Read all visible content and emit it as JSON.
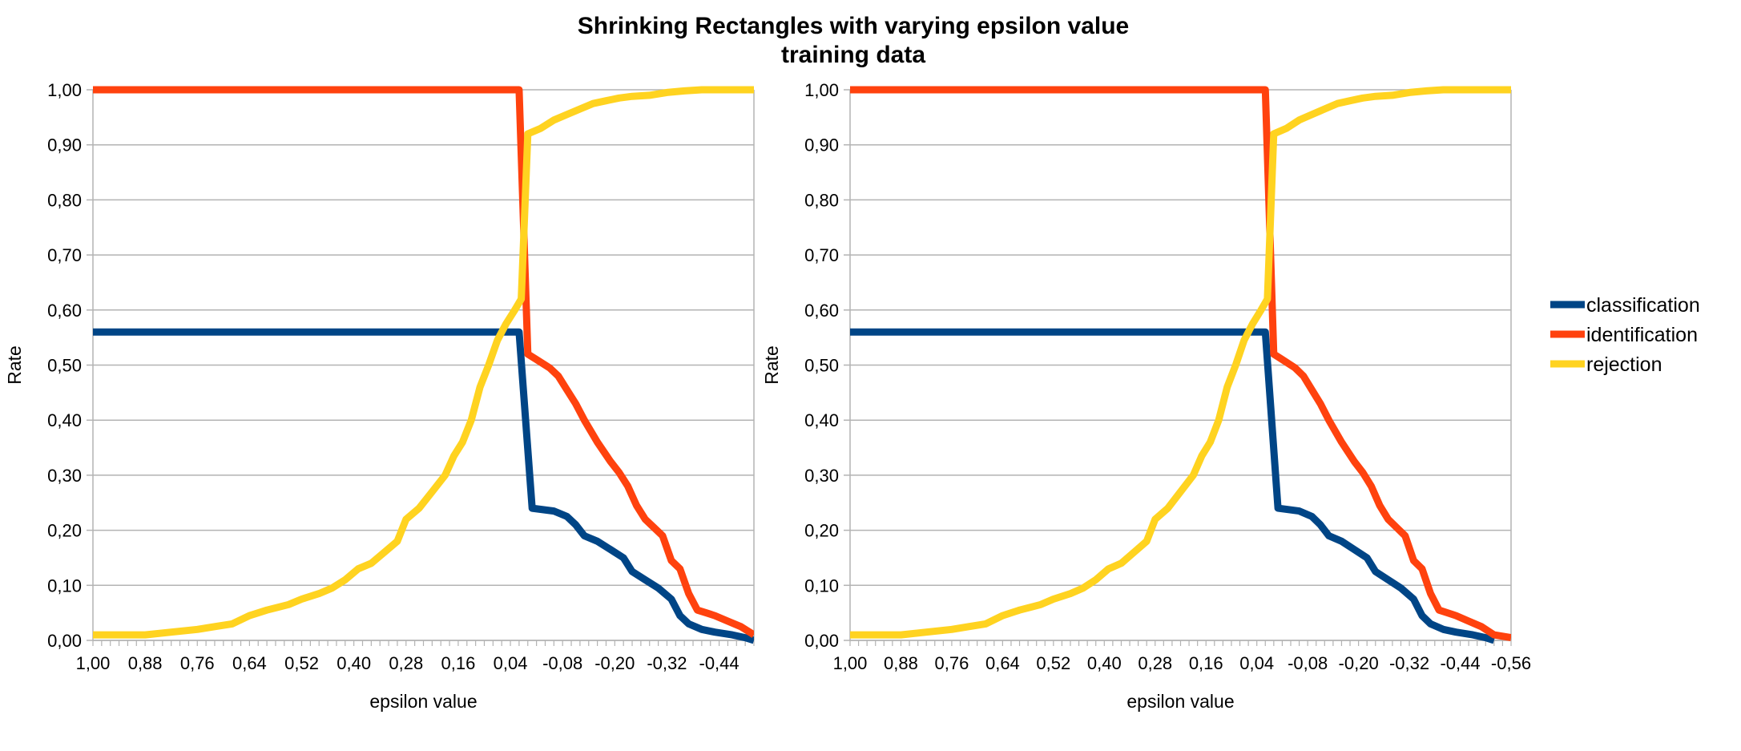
{
  "figure": {
    "title_line1": "Shrinking Rectangles with varying epsilon value",
    "title_line2": "training data"
  },
  "legend": {
    "placement": "right",
    "items": [
      {
        "name": "classification",
        "color": "#004586"
      },
      {
        "name": "identification",
        "color": "#ff420e"
      },
      {
        "name": "rejection",
        "color": "#ffd320"
      }
    ]
  },
  "chart_data": [
    {
      "type": "line",
      "xlabel": "epsilon value",
      "ylabel": "Rate",
      "xlim": [
        1.0,
        -0.52
      ],
      "ylim": [
        0,
        1
      ],
      "grid": true,
      "x_tick_labels": [
        "1,00",
        "0,88",
        "0,76",
        "0,64",
        "0,52",
        "0,40",
        "0,28",
        "0,16",
        "0,04",
        "-0,08",
        "-0,20",
        "-0,32",
        "-0,44"
      ],
      "y_tick_labels": [
        "0,00",
        "0,10",
        "0,20",
        "0,30",
        "0,40",
        "0,50",
        "0,60",
        "0,70",
        "0,80",
        "0,90",
        "1,00"
      ],
      "series": [
        {
          "name": "classification",
          "color": "#004586",
          "points": [
            [
              1.0,
              0.56
            ],
            [
              0.02,
              0.56
            ],
            [
              -0.01,
              0.24
            ],
            [
              -0.06,
              0.235
            ],
            [
              -0.09,
              0.225
            ],
            [
              -0.11,
              0.21
            ],
            [
              -0.13,
              0.19
            ],
            [
              -0.16,
              0.18
            ],
            [
              -0.19,
              0.165
            ],
            [
              -0.22,
              0.15
            ],
            [
              -0.24,
              0.125
            ],
            [
              -0.27,
              0.11
            ],
            [
              -0.3,
              0.095
            ],
            [
              -0.33,
              0.075
            ],
            [
              -0.35,
              0.045
            ],
            [
              -0.37,
              0.03
            ],
            [
              -0.4,
              0.02
            ],
            [
              -0.43,
              0.015
            ],
            [
              -0.47,
              0.01
            ],
            [
              -0.5,
              0.005
            ],
            [
              -0.52,
              0.0
            ]
          ]
        },
        {
          "name": "identification",
          "color": "#ff420e",
          "points": [
            [
              1.0,
              1.0
            ],
            [
              0.02,
              1.0
            ],
            [
              0.0,
              0.52
            ],
            [
              -0.02,
              0.51
            ],
            [
              -0.05,
              0.495
            ],
            [
              -0.07,
              0.48
            ],
            [
              -0.09,
              0.455
            ],
            [
              -0.11,
              0.43
            ],
            [
              -0.13,
              0.4
            ],
            [
              -0.16,
              0.36
            ],
            [
              -0.19,
              0.325
            ],
            [
              -0.21,
              0.305
            ],
            [
              -0.23,
              0.28
            ],
            [
              -0.25,
              0.245
            ],
            [
              -0.27,
              0.22
            ],
            [
              -0.29,
              0.205
            ],
            [
              -0.31,
              0.19
            ],
            [
              -0.33,
              0.145
            ],
            [
              -0.35,
              0.13
            ],
            [
              -0.37,
              0.085
            ],
            [
              -0.39,
              0.055
            ],
            [
              -0.41,
              0.05
            ],
            [
              -0.43,
              0.045
            ],
            [
              -0.46,
              0.035
            ],
            [
              -0.49,
              0.025
            ],
            [
              -0.52,
              0.01
            ]
          ]
        },
        {
          "name": "rejection",
          "color": "#ffd320",
          "points": [
            [
              1.0,
              0.01
            ],
            [
              0.88,
              0.01
            ],
            [
              0.82,
              0.015
            ],
            [
              0.76,
              0.02
            ],
            [
              0.72,
              0.025
            ],
            [
              0.68,
              0.03
            ],
            [
              0.64,
              0.045
            ],
            [
              0.6,
              0.055
            ],
            [
              0.55,
              0.065
            ],
            [
              0.52,
              0.075
            ],
            [
              0.48,
              0.085
            ],
            [
              0.45,
              0.095
            ],
            [
              0.42,
              0.11
            ],
            [
              0.39,
              0.13
            ],
            [
              0.36,
              0.14
            ],
            [
              0.33,
              0.16
            ],
            [
              0.3,
              0.18
            ],
            [
              0.28,
              0.22
            ],
            [
              0.25,
              0.24
            ],
            [
              0.22,
              0.27
            ],
            [
              0.19,
              0.3
            ],
            [
              0.17,
              0.335
            ],
            [
              0.15,
              0.36
            ],
            [
              0.13,
              0.4
            ],
            [
              0.11,
              0.46
            ],
            [
              0.09,
              0.5
            ],
            [
              0.07,
              0.545
            ],
            [
              0.05,
              0.575
            ],
            [
              0.03,
              0.6
            ],
            [
              0.015,
              0.62
            ],
            [
              0.0,
              0.92
            ],
            [
              -0.03,
              0.93
            ],
            [
              -0.06,
              0.945
            ],
            [
              -0.09,
              0.955
            ],
            [
              -0.12,
              0.965
            ],
            [
              -0.15,
              0.975
            ],
            [
              -0.18,
              0.98
            ],
            [
              -0.21,
              0.985
            ],
            [
              -0.24,
              0.988
            ],
            [
              -0.28,
              0.99
            ],
            [
              -0.32,
              0.995
            ],
            [
              -0.36,
              0.998
            ],
            [
              -0.4,
              1.0
            ],
            [
              -0.52,
              1.0
            ]
          ]
        }
      ]
    },
    {
      "type": "line",
      "xlabel": "epsilon value",
      "ylabel": "Rate",
      "xlim": [
        1.0,
        -0.56
      ],
      "ylim": [
        0,
        1
      ],
      "grid": true,
      "x_tick_labels": [
        "1,00",
        "0,88",
        "0,76",
        "0,64",
        "0,52",
        "0,40",
        "0,28",
        "0,16",
        "0,04",
        "-0,08",
        "-0,20",
        "-0,32",
        "-0,44",
        "-0,56"
      ],
      "y_tick_labels": [
        "0,00",
        "0,10",
        "0,20",
        "0,30",
        "0,40",
        "0,50",
        "0,60",
        "0,70",
        "0,80",
        "0,90",
        "1,00"
      ],
      "series": [
        {
          "name": "classification",
          "color": "#004586",
          "points": [
            [
              1.0,
              0.56
            ],
            [
              0.02,
              0.56
            ],
            [
              -0.01,
              0.24
            ],
            [
              -0.06,
              0.235
            ],
            [
              -0.09,
              0.225
            ],
            [
              -0.11,
              0.21
            ],
            [
              -0.13,
              0.19
            ],
            [
              -0.16,
              0.18
            ],
            [
              -0.19,
              0.165
            ],
            [
              -0.22,
              0.15
            ],
            [
              -0.24,
              0.125
            ],
            [
              -0.27,
              0.11
            ],
            [
              -0.3,
              0.095
            ],
            [
              -0.33,
              0.075
            ],
            [
              -0.35,
              0.045
            ],
            [
              -0.37,
              0.03
            ],
            [
              -0.4,
              0.02
            ],
            [
              -0.43,
              0.015
            ],
            [
              -0.47,
              0.01
            ],
            [
              -0.5,
              0.005
            ],
            [
              -0.52,
              0.0
            ]
          ]
        },
        {
          "name": "identification",
          "color": "#ff420e",
          "points": [
            [
              1.0,
              1.0
            ],
            [
              0.02,
              1.0
            ],
            [
              0.0,
              0.52
            ],
            [
              -0.02,
              0.51
            ],
            [
              -0.05,
              0.495
            ],
            [
              -0.07,
              0.48
            ],
            [
              -0.09,
              0.455
            ],
            [
              -0.11,
              0.43
            ],
            [
              -0.13,
              0.4
            ],
            [
              -0.16,
              0.36
            ],
            [
              -0.19,
              0.325
            ],
            [
              -0.21,
              0.305
            ],
            [
              -0.23,
              0.28
            ],
            [
              -0.25,
              0.245
            ],
            [
              -0.27,
              0.22
            ],
            [
              -0.29,
              0.205
            ],
            [
              -0.31,
              0.19
            ],
            [
              -0.33,
              0.145
            ],
            [
              -0.35,
              0.13
            ],
            [
              -0.37,
              0.085
            ],
            [
              -0.39,
              0.055
            ],
            [
              -0.41,
              0.05
            ],
            [
              -0.43,
              0.045
            ],
            [
              -0.46,
              0.035
            ],
            [
              -0.49,
              0.025
            ],
            [
              -0.52,
              0.01
            ],
            [
              -0.56,
              0.005
            ]
          ]
        },
        {
          "name": "rejection",
          "color": "#ffd320",
          "points": [
            [
              1.0,
              0.01
            ],
            [
              0.88,
              0.01
            ],
            [
              0.82,
              0.015
            ],
            [
              0.76,
              0.02
            ],
            [
              0.72,
              0.025
            ],
            [
              0.68,
              0.03
            ],
            [
              0.64,
              0.045
            ],
            [
              0.6,
              0.055
            ],
            [
              0.55,
              0.065
            ],
            [
              0.52,
              0.075
            ],
            [
              0.48,
              0.085
            ],
            [
              0.45,
              0.095
            ],
            [
              0.42,
              0.11
            ],
            [
              0.39,
              0.13
            ],
            [
              0.36,
              0.14
            ],
            [
              0.33,
              0.16
            ],
            [
              0.3,
              0.18
            ],
            [
              0.28,
              0.22
            ],
            [
              0.25,
              0.24
            ],
            [
              0.22,
              0.27
            ],
            [
              0.19,
              0.3
            ],
            [
              0.17,
              0.335
            ],
            [
              0.15,
              0.36
            ],
            [
              0.13,
              0.4
            ],
            [
              0.11,
              0.46
            ],
            [
              0.09,
              0.5
            ],
            [
              0.07,
              0.545
            ],
            [
              0.05,
              0.575
            ],
            [
              0.03,
              0.6
            ],
            [
              0.015,
              0.62
            ],
            [
              0.0,
              0.92
            ],
            [
              -0.03,
              0.93
            ],
            [
              -0.06,
              0.945
            ],
            [
              -0.09,
              0.955
            ],
            [
              -0.12,
              0.965
            ],
            [
              -0.15,
              0.975
            ],
            [
              -0.18,
              0.98
            ],
            [
              -0.21,
              0.985
            ],
            [
              -0.24,
              0.988
            ],
            [
              -0.28,
              0.99
            ],
            [
              -0.32,
              0.995
            ],
            [
              -0.36,
              0.998
            ],
            [
              -0.4,
              1.0
            ],
            [
              -0.56,
              1.0
            ]
          ]
        }
      ]
    }
  ]
}
